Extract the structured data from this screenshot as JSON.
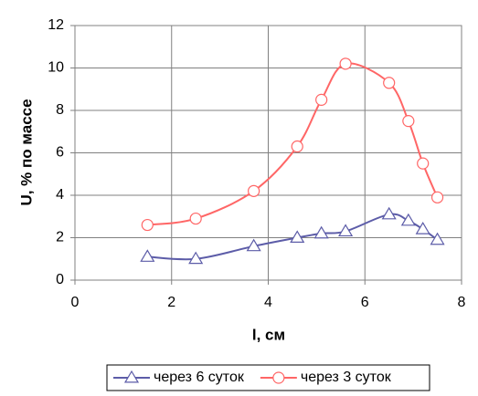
{
  "chart_data": {
    "type": "line",
    "x_label": "l, см",
    "y_label": "U, % по массе",
    "x": [
      1.5,
      2.5,
      3.7,
      4.6,
      5.1,
      5.6,
      6.5,
      6.9,
      7.2,
      7.5
    ],
    "series": [
      {
        "name": "через 6 суток",
        "color": "#5c5ca8",
        "marker": "triangle",
        "values": [
          1.1,
          1.0,
          1.6,
          2.0,
          2.2,
          2.3,
          3.1,
          2.8,
          2.4,
          1.9
        ]
      },
      {
        "name": "через 3 суток",
        "color": "#ff6666",
        "marker": "circle",
        "values": [
          2.6,
          2.9,
          4.2,
          6.3,
          8.5,
          10.2,
          9.3,
          7.5,
          5.5,
          3.9
        ]
      }
    ],
    "xlim": [
      0,
      8
    ],
    "xticks": [
      0,
      2,
      4,
      6,
      8
    ],
    "ylim": [
      0,
      12
    ],
    "yticks": [
      0,
      2,
      4,
      6,
      8,
      10,
      12
    ],
    "grid": true,
    "smooth": true,
    "legend": "bottom"
  }
}
